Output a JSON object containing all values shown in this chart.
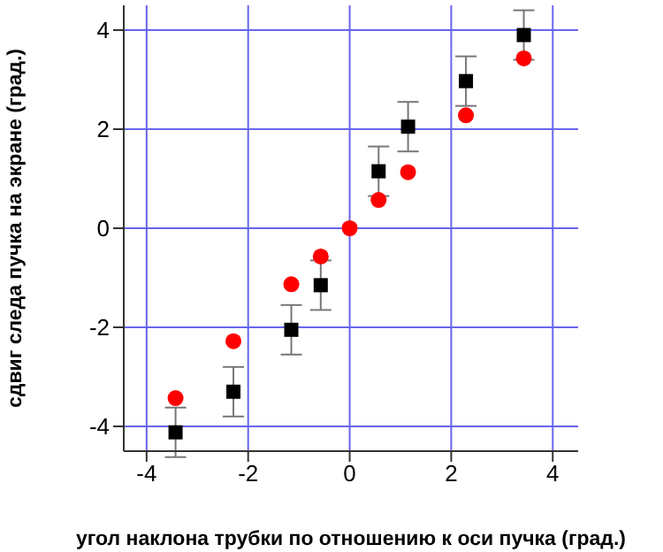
{
  "chart_data": {
    "type": "scatter",
    "xlabel": "угол наклона трубки по отношению к оси пучка (град.)",
    "ylabel": "сдвиг следа пучка на экране (град.)",
    "xlim": [
      -4.45,
      4.5
    ],
    "ylim": [
      -4.5,
      4.5
    ],
    "xticks": [
      -4,
      -2,
      0,
      2,
      4
    ],
    "yticks": [
      -4,
      -2,
      0,
      2,
      4
    ],
    "grid": true,
    "series": [
      {
        "color": "#000000",
        "marker": "square",
        "x": [
          -3.43,
          -2.29,
          -1.15,
          -0.57,
          0.57,
          1.15,
          2.29,
          3.43
        ],
        "values": [
          -4.12,
          -3.3,
          -2.05,
          -1.15,
          1.15,
          2.05,
          2.97,
          3.9
        ],
        "errors": [
          0.5,
          0.5,
          0.5,
          0.5,
          0.5,
          0.5,
          0.5,
          0.5
        ]
      },
      {
        "color": "#ff0000",
        "marker": "circle",
        "x": [
          -3.43,
          -2.29,
          -1.15,
          -0.57,
          0,
          0.57,
          1.15,
          2.29,
          3.43
        ],
        "values": [
          -3.43,
          -2.28,
          -1.13,
          -0.57,
          0,
          0.57,
          1.13,
          2.28,
          3.43
        ]
      }
    ]
  }
}
